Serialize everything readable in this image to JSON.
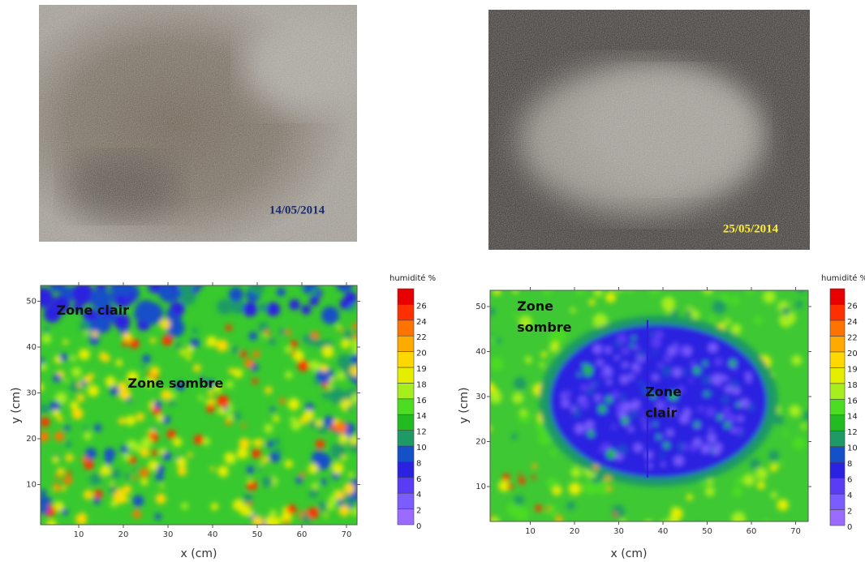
{
  "panels": [
    {
      "photo": {
        "date": "14/05/2014"
      },
      "map": {
        "xlabel": "x (cm)",
        "ylabel": "y (cm)",
        "xticks": [
          10,
          20,
          30,
          40,
          50,
          60,
          70
        ],
        "yticks": [
          10,
          20,
          30,
          40,
          50
        ],
        "annotations": [
          {
            "lines": [
              "Zone clair"
            ]
          },
          {
            "lines": [
              "Zone sombre"
            ]
          }
        ]
      },
      "colorbar": {
        "title": "humidité %",
        "labels": [
          0,
          2,
          4,
          6,
          8,
          10,
          12,
          14,
          16,
          18,
          19,
          20,
          22,
          24,
          26
        ]
      }
    },
    {
      "photo": {
        "date": "25/05/2014"
      },
      "map": {
        "xlabel": "x (cm)",
        "ylabel": "y (cm)",
        "xticks": [
          10,
          20,
          30,
          40,
          50,
          60,
          70
        ],
        "yticks": [
          10,
          20,
          30,
          40,
          50
        ],
        "annotations": [
          {
            "lines": [
              "Zone",
              "sombre"
            ]
          },
          {
            "lines": [
              "Zone",
              "clair"
            ]
          }
        ]
      },
      "colorbar": {
        "title": "humidité %",
        "labels": [
          0,
          2,
          4,
          6,
          8,
          10,
          12,
          14,
          16,
          18,
          19,
          20,
          22,
          24,
          26
        ]
      }
    }
  ]
}
